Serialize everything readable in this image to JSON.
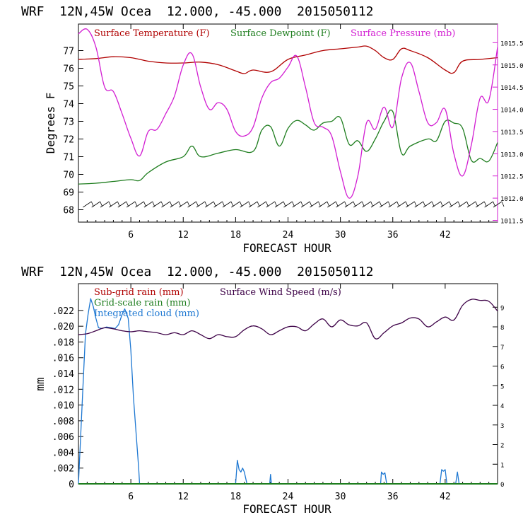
{
  "colors": {
    "temperature": "#b00000",
    "dewpoint": "#1e7d1e",
    "pressure": "#d21ed2",
    "subgrid_rain": "#b00000",
    "gridscale_rain": "#1e7d1e",
    "cloud": "#1e78d2",
    "wind": "#3c0046",
    "wind_barb": "#000000",
    "axis": "#000000"
  },
  "chart_data": [
    {
      "type": "line",
      "header": "WRF  12N,45W Ocea  12.000, -45.000  2015050112",
      "xlabel": "FORECAST HOUR",
      "ylabel": "Degrees F",
      "xlim": [
        0,
        48
      ],
      "ylim": [
        67.3,
        78.5
      ],
      "y2lim": [
        1011.46,
        1015.92
      ],
      "x_ticks": [
        "6",
        "12",
        "18",
        "24",
        "30",
        "36",
        "42"
      ],
      "y_ticks": [
        "68",
        "69",
        "70",
        "71",
        "72",
        "73",
        "74",
        "75",
        "76",
        "77"
      ],
      "y2_ticks": [
        "1011.5",
        "1012.0",
        "1012.5",
        "1013.0",
        "1013.5",
        "1014.0",
        "1014.5",
        "1015.0",
        "1015.5"
      ],
      "legend": [
        "Surface Temperature (F)",
        "Surface Dewpoint (F)",
        "Surface Pressure (mb)"
      ],
      "legend_placement": "top-left",
      "grid": false,
      "series": [
        {
          "name": "Surface Temperature (F)",
          "axis": "left",
          "x": [
            0,
            2,
            4,
            6,
            8,
            10,
            12,
            14,
            16,
            18,
            19,
            20,
            22,
            24,
            26,
            28,
            30,
            32,
            33,
            34,
            35,
            36,
            37,
            38,
            40,
            42,
            43,
            44,
            46,
            48
          ],
          "y": [
            76.5,
            76.55,
            76.65,
            76.6,
            76.4,
            76.3,
            76.3,
            76.35,
            76.2,
            75.85,
            75.7,
            75.9,
            75.8,
            76.5,
            76.75,
            77.0,
            77.1,
            77.2,
            77.25,
            77.0,
            76.6,
            76.5,
            77.1,
            77.0,
            76.6,
            75.9,
            75.75,
            76.4,
            76.5,
            76.6
          ]
        },
        {
          "name": "Surface Dewpoint (F)",
          "axis": "left",
          "x": [
            0,
            2,
            4,
            6,
            7,
            8,
            10,
            12,
            13,
            14,
            16,
            18,
            20,
            21,
            22,
            23,
            24,
            25,
            26,
            27,
            28,
            29,
            30,
            31,
            32,
            33,
            34,
            35,
            36,
            37,
            38,
            40,
            41,
            42,
            43,
            44,
            45,
            46,
            47,
            48
          ],
          "y": [
            69.45,
            69.5,
            69.6,
            69.7,
            69.65,
            70.1,
            70.7,
            71.0,
            71.6,
            71.0,
            71.2,
            71.4,
            71.3,
            72.5,
            72.7,
            71.6,
            72.6,
            73.05,
            72.8,
            72.5,
            72.9,
            73.0,
            73.2,
            71.7,
            71.9,
            71.3,
            72.0,
            73.0,
            73.55,
            71.2,
            71.6,
            72.0,
            71.9,
            73.0,
            72.9,
            72.6,
            70.8,
            70.9,
            70.75,
            71.8
          ]
        },
        {
          "name": "Surface Pressure (mb)",
          "axis": "right",
          "x": [
            0,
            1,
            2,
            3,
            4,
            5,
            6,
            7,
            8,
            9,
            10,
            11,
            12,
            13,
            14,
            15,
            16,
            17,
            18,
            19,
            20,
            21,
            22,
            23,
            24,
            25,
            26,
            27,
            28,
            29,
            30,
            31,
            32,
            33,
            34,
            35,
            36,
            37,
            38,
            39,
            40,
            41,
            42,
            43,
            44,
            45,
            46,
            47,
            48
          ],
          "y": [
            1015.7,
            1015.8,
            1015.4,
            1014.5,
            1014.4,
            1013.9,
            1013.35,
            1012.95,
            1013.5,
            1013.55,
            1013.9,
            1014.3,
            1015.0,
            1015.25,
            1014.5,
            1014.0,
            1014.15,
            1014.0,
            1013.5,
            1013.4,
            1013.6,
            1014.25,
            1014.6,
            1014.7,
            1014.95,
            1015.2,
            1014.5,
            1013.7,
            1013.6,
            1013.4,
            1012.6,
            1012.0,
            1012.5,
            1013.7,
            1013.55,
            1014.05,
            1013.6,
            1014.7,
            1015.05,
            1014.4,
            1013.7,
            1013.7,
            1014.0,
            1013.0,
            1012.5,
            1013.2,
            1014.25,
            1014.2,
            1015.4
          ]
        }
      ],
      "wind_barbs": {
        "y": 68.3,
        "x_start": 1,
        "x_end": 48,
        "step": 1
      }
    },
    {
      "type": "line",
      "header": "WRF  12N,45W Ocea  12.000, -45.000  2015050112",
      "xlabel": "FORECAST HOUR",
      "ylabel": "mm",
      "xlim": [
        0,
        48
      ],
      "ylim": [
        0,
        0.0254
      ],
      "y2lim": [
        0,
        10.2
      ],
      "x_ticks": [
        "6",
        "12",
        "18",
        "24",
        "30",
        "36",
        "42"
      ],
      "y_ticks": [
        "0",
        ".002",
        ".004",
        ".006",
        ".008",
        ".010",
        ".012",
        ".014",
        ".016",
        ".018",
        ".020",
        ".022"
      ],
      "y2_ticks": [
        "0",
        "1",
        "2",
        "3",
        "4",
        "5",
        "6",
        "7",
        "8",
        "9"
      ],
      "legend": [
        "Sub-grid rain (mm)",
        "Grid-scale rain (mm)",
        "Integrated cloud (mm)",
        "Surface Wind Speed (m/s)"
      ],
      "legend_placement": "top",
      "grid": false,
      "series": [
        {
          "name": "Integrated cloud (mm)",
          "axis": "left",
          "x": [
            0,
            0.5,
            0.8,
            1.1,
            1.4,
            1.7,
            2.0,
            2.3,
            2.7,
            3.2,
            3.8,
            4.2,
            4.6,
            5.0,
            5.3,
            5.7,
            6.0,
            6.3,
            6.6,
            6.9,
            7.0,
            18.0,
            18.2,
            18.4,
            18.6,
            18.8,
            19.0,
            19.3,
            21.9,
            22.0,
            22.1,
            34.6,
            34.7,
            34.9,
            35.1,
            35.3,
            41.4,
            41.6,
            41.8,
            42.0,
            42.2,
            43.2,
            43.4,
            43.6
          ],
          "y": [
            0,
            0.012,
            0.019,
            0.0215,
            0.0235,
            0.0225,
            0.021,
            0.0198,
            0.0197,
            0.0199,
            0.0198,
            0.0197,
            0.0202,
            0.0215,
            0.0222,
            0.021,
            0.017,
            0.011,
            0.0065,
            0.002,
            0,
            0,
            0.003,
            0.0018,
            0.0015,
            0.002,
            0.0015,
            0,
            0,
            0.0012,
            0,
            0,
            0.0015,
            0.0012,
            0.0014,
            0,
            0,
            0.0018,
            0.0016,
            0.0018,
            0,
            0,
            0.0015,
            0
          ]
        },
        {
          "name": "Surface Wind Speed (m/s)",
          "axis": "right",
          "x": [
            0,
            1,
            2,
            3,
            4,
            5,
            6,
            7,
            8,
            9,
            10,
            11,
            12,
            13,
            14,
            15,
            16,
            17,
            18,
            19,
            20,
            21,
            22,
            23,
            24,
            25,
            26,
            27,
            28,
            29,
            30,
            31,
            32,
            33,
            34,
            35,
            36,
            37,
            38,
            39,
            40,
            41,
            42,
            43,
            44,
            45,
            46,
            47,
            48
          ],
          "y": [
            7.6,
            7.65,
            7.8,
            7.95,
            7.9,
            7.8,
            7.75,
            7.8,
            7.75,
            7.7,
            7.6,
            7.7,
            7.6,
            7.8,
            7.6,
            7.4,
            7.6,
            7.5,
            7.5,
            7.85,
            8.05,
            7.9,
            7.6,
            7.8,
            8.0,
            8.0,
            7.8,
            8.15,
            8.4,
            8.0,
            8.35,
            8.1,
            8.05,
            8.2,
            7.4,
            7.7,
            8.05,
            8.2,
            8.45,
            8.4,
            8.0,
            8.25,
            8.5,
            8.35,
            9.1,
            9.4,
            9.35,
            9.3,
            8.8
          ]
        },
        {
          "name": "Sub-grid rain (mm)",
          "axis": "left",
          "x": [
            0,
            48
          ],
          "y": [
            0,
            0
          ]
        },
        {
          "name": "Grid-scale rain (mm)",
          "axis": "left",
          "x": [
            0,
            48
          ],
          "y": [
            0,
            0
          ]
        }
      ]
    }
  ]
}
